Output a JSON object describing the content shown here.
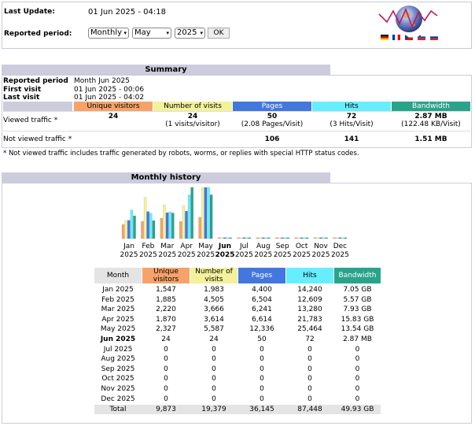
{
  "header": {
    "last_update_label": "Last Update:",
    "last_update_value": "01 Jun 2025 - 04:18",
    "period_label": "Reported period:",
    "period_type": "Monthly",
    "period_month": "May",
    "period_year": "2025",
    "ok_label": "OK"
  },
  "summary": {
    "title": "Summary",
    "reported_period_label": "Reported period",
    "reported_period_value": "Month Jun 2025",
    "first_visit_label": "First visit",
    "first_visit_value": "01 Jun 2025 - 00:06",
    "last_visit_label": "Last visit",
    "last_visit_value": "01 Jun 2025 - 04:02",
    "col_unique": "Unique visitors",
    "col_visits": "Number of visits",
    "col_pages": "Pages",
    "col_hits": "Hits",
    "col_bandwidth": "Bandwidth",
    "viewed_label": "Viewed traffic *",
    "viewed_unique": "24",
    "viewed_visits": "24",
    "viewed_visits_sub": "(1 visits/visitor)",
    "viewed_pages": "50",
    "viewed_pages_sub": "(2.08 Pages/Visit)",
    "viewed_hits": "72",
    "viewed_hits_sub": "(3 Hits/Visit)",
    "viewed_bw": "2.87 MB",
    "viewed_bw_sub": "(122.48 KB/Visit)",
    "notviewed_label": "Not viewed traffic *",
    "notviewed_pages": "106",
    "notviewed_hits": "141",
    "notviewed_bw": "1.51 MB",
    "footnote": "* Not viewed traffic includes traffic generated by robots, worms, or replies with special HTTP status codes."
  },
  "history": {
    "title": "Monthly history",
    "col_month": "Month",
    "col_unique": "Unique visitors",
    "col_visits": "Number of visits",
    "col_pages": "Pages",
    "col_hits": "Hits",
    "col_bandwidth": "Bandwidth",
    "rows": [
      {
        "month": "Jan 2025",
        "unique": "1,547",
        "visits": "1,983",
        "pages": "4,400",
        "hits": "14,240",
        "bw": "7.05 GB"
      },
      {
        "month": "Feb 2025",
        "unique": "1,885",
        "visits": "4,505",
        "pages": "6,504",
        "hits": "12,609",
        "bw": "5.57 GB"
      },
      {
        "month": "Mar 2025",
        "unique": "2,220",
        "visits": "3,666",
        "pages": "6,241",
        "hits": "13,280",
        "bw": "7.93 GB"
      },
      {
        "month": "Apr 2025",
        "unique": "1,870",
        "visits": "3,614",
        "pages": "6,614",
        "hits": "21,783",
        "bw": "15.83 GB"
      },
      {
        "month": "May 2025",
        "unique": "2,327",
        "visits": "5,587",
        "pages": "12,336",
        "hits": "25,464",
        "bw": "13.54 GB"
      },
      {
        "month": "Jun 2025",
        "unique": "24",
        "visits": "24",
        "pages": "50",
        "hits": "72",
        "bw": "2.87 MB"
      },
      {
        "month": "Jul 2025",
        "unique": "0",
        "visits": "0",
        "pages": "0",
        "hits": "0",
        "bw": "0"
      },
      {
        "month": "Aug 2025",
        "unique": "0",
        "visits": "0",
        "pages": "0",
        "hits": "0",
        "bw": "0"
      },
      {
        "month": "Sep 2025",
        "unique": "0",
        "visits": "0",
        "pages": "0",
        "hits": "0",
        "bw": "0"
      },
      {
        "month": "Oct 2025",
        "unique": "0",
        "visits": "0",
        "pages": "0",
        "hits": "0",
        "bw": "0"
      },
      {
        "month": "Nov 2025",
        "unique": "0",
        "visits": "0",
        "pages": "0",
        "hits": "0",
        "bw": "0"
      },
      {
        "month": "Dec 2025",
        "unique": "0",
        "visits": "0",
        "pages": "0",
        "hits": "0",
        "bw": "0"
      }
    ],
    "total_label": "Total",
    "total_unique": "9,873",
    "total_visits": "19,379",
    "total_pages": "36,145",
    "total_hits": "87,448",
    "total_bw": "49.93 GB"
  },
  "colors": {
    "unique": "#f5a36b",
    "visits": "#f3f19b",
    "pages": "#4477dd",
    "hits": "#66eeff",
    "bandwidth": "#2aa38b",
    "section_title": "#ccccdd"
  },
  "chart_data": {
    "type": "bar",
    "categories": [
      "Jan",
      "Feb",
      "Mar",
      "Apr",
      "May",
      "Jun",
      "Jul",
      "Aug",
      "Sep",
      "Oct",
      "Nov",
      "Dec"
    ],
    "category_years": [
      "2025",
      "2025",
      "2025",
      "2025",
      "2025",
      "2025",
      "2025",
      "2025",
      "2025",
      "2025",
      "2025",
      "2025"
    ],
    "highlight_category": "Jun",
    "series": [
      {
        "key": "unique",
        "values": [
          1547,
          1885,
          2220,
          1870,
          2327,
          24,
          0,
          0,
          0,
          0,
          0,
          0
        ]
      },
      {
        "key": "visits",
        "values": [
          1983,
          4505,
          3666,
          3614,
          5587,
          24,
          0,
          0,
          0,
          0,
          0,
          0
        ]
      },
      {
        "key": "pages",
        "values": [
          4400,
          6504,
          6241,
          6614,
          12336,
          50,
          0,
          0,
          0,
          0,
          0,
          0
        ]
      },
      {
        "key": "hits",
        "values": [
          14240,
          12609,
          13280,
          21783,
          25464,
          72,
          0,
          0,
          0,
          0,
          0,
          0
        ]
      },
      {
        "key": "bandwidth",
        "values": [
          7.05,
          5.57,
          7.93,
          15.83,
          13.54,
          0.0028,
          0,
          0,
          0,
          0,
          0,
          0
        ]
      }
    ]
  },
  "flags": [
    "de",
    "fr",
    "cz",
    "si",
    "ru"
  ]
}
